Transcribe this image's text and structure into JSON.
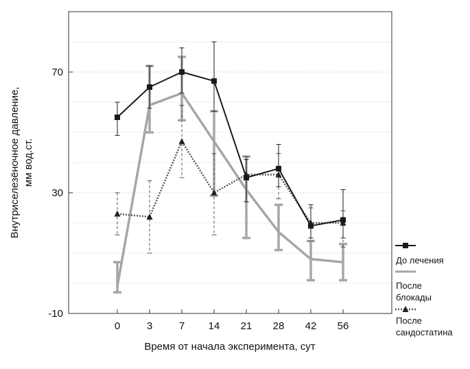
{
  "chart_data": {
    "type": "line",
    "title": "",
    "xlabel": "Время от начала эксперимента, сут",
    "ylabel_line1": "Внутриселезёночное давление,",
    "ylabel_line2": "мм вод.ст.",
    "categories": [
      "0",
      "3",
      "7",
      "14",
      "21",
      "28",
      "42",
      "56"
    ],
    "y_ticks": [
      "-10",
      "30",
      "70"
    ],
    "ylim": [
      -10,
      90
    ],
    "grid": "horizontal dotted",
    "legend_placement": "bottom-right",
    "series": [
      {
        "name": "До лечения",
        "color": "#1a1a1a",
        "marker": "square",
        "line": "solid-dark",
        "values": [
          55,
          65,
          70,
          67,
          35,
          38,
          19,
          21
        ],
        "err_low": [
          49,
          58,
          63,
          57,
          27,
          32,
          15,
          15
        ],
        "err_high": [
          60,
          72,
          78,
          80,
          41,
          46,
          26,
          31
        ]
      },
      {
        "name": "После блокады",
        "legend_lines": [
          "После",
          "блокады"
        ],
        "color": "#a6a6a6",
        "marker": "none",
        "line": "solid-light",
        "values": [
          -1,
          59,
          63,
          47,
          31,
          17,
          8,
          7
        ],
        "err_low": [
          -3,
          50,
          54,
          29,
          15,
          11,
          1,
          1
        ],
        "err_high": [
          7,
          72,
          75,
          57,
          42,
          26,
          14,
          13
        ]
      },
      {
        "name": "После сандостатина",
        "legend_lines": [
          "После",
          "сандостатина"
        ],
        "color": "#555555",
        "marker": "triangle",
        "line": "dotted-dark",
        "values": [
          23,
          22,
          47,
          30,
          36,
          36,
          20,
          20
        ],
        "err_low": [
          16,
          10,
          35,
          16,
          27,
          28,
          14,
          12
        ],
        "err_high": [
          30,
          34,
          59,
          43,
          42,
          43,
          25,
          24
        ]
      }
    ]
  }
}
